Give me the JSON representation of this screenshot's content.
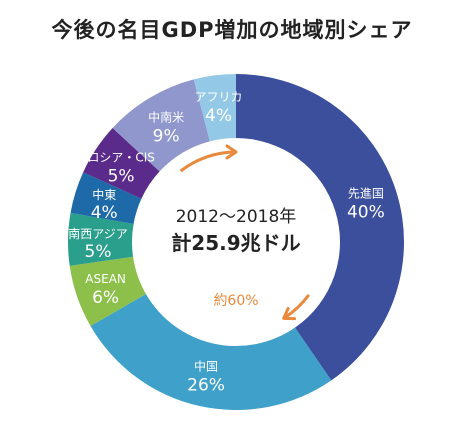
{
  "chart_data": {
    "type": "pie",
    "title": "今後の名目GDP増加の地域別シェア",
    "center_text": [
      "2012〜2018年",
      "計25.9兆ドル"
    ],
    "annotation": "約60%",
    "slices": [
      {
        "label": "先進国",
        "value": 40,
        "value_label": "40%",
        "color": "#3b4f9c"
      },
      {
        "label": "中国",
        "value": 26,
        "value_label": "26%",
        "color": "#3fa0c9"
      },
      {
        "label": "ASEAN",
        "value": 6,
        "value_label": "6%",
        "color": "#8cc04a"
      },
      {
        "label": "南西アジア",
        "value": 5,
        "value_label": "5%",
        "color": "#2a9f8c"
      },
      {
        "label": "中東",
        "value": 4,
        "value_label": "4%",
        "color": "#1e6aa8"
      },
      {
        "label": "ロシア・CIS",
        "value": 5,
        "value_label": "5%",
        "color": "#5a2b8a"
      },
      {
        "label": "中南米",
        "value": 9,
        "value_label": "9%",
        "color": "#8f97cc"
      },
      {
        "label": "アフリカ",
        "value": 4,
        "value_label": "4%",
        "color": "#93c9e6"
      }
    ],
    "arrow_color": "#e8893c"
  }
}
